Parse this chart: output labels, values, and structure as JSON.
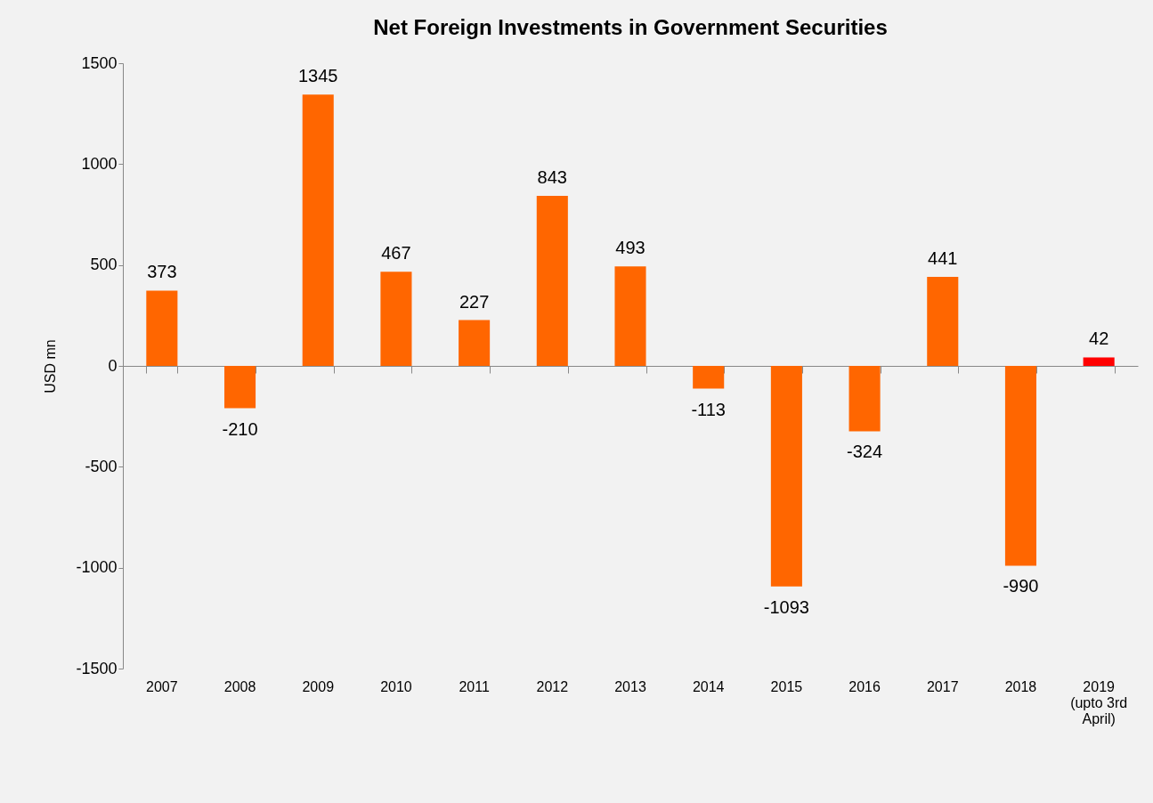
{
  "chart_data": {
    "type": "bar",
    "title": "Net Foreign Investments in Government Securities",
    "ylabel": "USD mn",
    "categories": [
      "2007",
      "2008",
      "2009",
      "2010",
      "2011",
      "2012",
      "2013",
      "2014",
      "2015",
      "2016",
      "2017",
      "2018",
      "2019 (upto 3rd April)"
    ],
    "values": [
      373,
      -210,
      1345,
      467,
      227,
      843,
      493,
      -113,
      -1093,
      -324,
      441,
      -990,
      42
    ],
    "colors": [
      "#ff6600",
      "#ff6600",
      "#ff6600",
      "#ff6600",
      "#ff6600",
      "#ff6600",
      "#ff6600",
      "#ff6600",
      "#ff6600",
      "#ff6600",
      "#ff6600",
      "#ff6600",
      "#ff0000"
    ],
    "ylim": [
      -1500,
      1500
    ],
    "yticks": [
      -1500,
      -1000,
      -500,
      0,
      500,
      1000,
      1500
    ],
    "legend": false,
    "data_labels": true
  }
}
